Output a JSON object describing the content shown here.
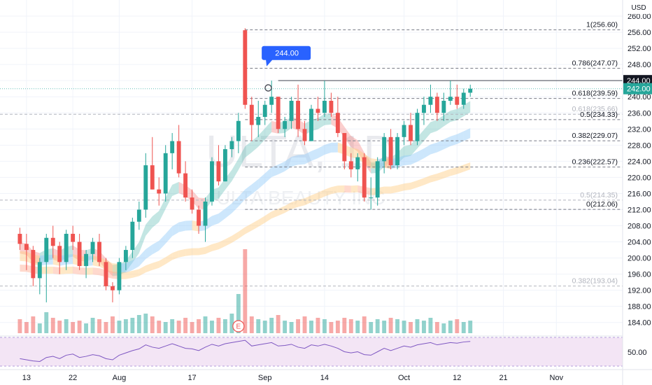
{
  "currency": "USD",
  "watermark": {
    "ticker": "ULTA, 1D",
    "name": "ULTA BEAUTY INC"
  },
  "last_price_label": "242.00",
  "highlight_label": "244.00",
  "earnings_marker": "E",
  "rsi_label": "50.00",
  "colors": {
    "up": "#26a69a",
    "down": "#ef5350",
    "fib_major": "#787b86",
    "fib_minor": "#b2b5be",
    "callout": "#2962ff",
    "rsi_line": "#7e57c2",
    "rsi_band": "#f3e5f5"
  },
  "chart_data": {
    "type": "candlestick",
    "title": "",
    "y_axis": {
      "ticks": [
        "260.00",
        "256.00",
        "252.00",
        "248.00",
        "244.00",
        "240.00",
        "236.00",
        "232.00",
        "228.00",
        "224.00",
        "220.00",
        "216.00",
        "212.00",
        "208.00",
        "204.00",
        "200.00",
        "196.00",
        "192.00",
        "188.00",
        "184.00"
      ],
      "range": [
        181,
        264
      ]
    },
    "x_axis": {
      "tick_labels": [
        {
          "label": "13",
          "index": 1
        },
        {
          "label": "22",
          "index": 8
        },
        {
          "label": "Aug",
          "index": 15
        },
        {
          "label": "17",
          "index": 26
        },
        {
          "label": "Sep",
          "index": 37
        },
        {
          "label": "14",
          "index": 46
        },
        {
          "label": "Oct",
          "index": 58
        },
        {
          "label": "12",
          "index": 66
        },
        {
          "label": "21",
          "index": 73
        },
        {
          "label": "Nov",
          "index": 81
        }
      ],
      "index_range": [
        -3,
        91
      ]
    },
    "fibonacci": [
      {
        "label": "1(256.60)",
        "value": 256.6,
        "major": true
      },
      {
        "label": "0.786(247.07)",
        "value": 247.07,
        "major": true
      },
      {
        "label": "0.618(239.59)",
        "value": 239.59,
        "major": true
      },
      {
        "label": "0.618(235.66)",
        "value": 235.66,
        "major": false
      },
      {
        "label": "0.5(234.33)",
        "value": 234.33,
        "major": true
      },
      {
        "label": "0.382(229.07)",
        "value": 229.07,
        "major": true
      },
      {
        "label": "0.236(222.57)",
        "value": 222.57,
        "major": true
      },
      {
        "label": "0.5(214.35)",
        "value": 214.35,
        "major": false
      },
      {
        "label": "0(212.06)",
        "value": 212.06,
        "major": true
      },
      {
        "label": "0.382(193.04)",
        "value": 193.04,
        "major": false
      }
    ],
    "horizontal_line": 244.0,
    "candles": [
      [
        206,
        207.5,
        202,
        203.5
      ],
      [
        203.5,
        206,
        197,
        202
      ],
      [
        202,
        203,
        193,
        195
      ],
      [
        195,
        200,
        191,
        199
      ],
      [
        199,
        206,
        189,
        205
      ],
      [
        205,
        208,
        200,
        203
      ],
      [
        203,
        204,
        196,
        199
      ],
      [
        199,
        207,
        197,
        206
      ],
      [
        206,
        208,
        202,
        204
      ],
      [
        204,
        206,
        197,
        198
      ],
      [
        198,
        202,
        195,
        201
      ],
      [
        201,
        205,
        199,
        204
      ],
      [
        204,
        206,
        198,
        199
      ],
      [
        199,
        200,
        192,
        193
      ],
      [
        193,
        194,
        189,
        192
      ],
      [
        192,
        200,
        191,
        199
      ],
      [
        199,
        203,
        197,
        202
      ],
      [
        202,
        210,
        200,
        209
      ],
      [
        209,
        214,
        207,
        212
      ],
      [
        212,
        226,
        210,
        223
      ],
      [
        223,
        230,
        217,
        217
      ],
      [
        217,
        220,
        213,
        216
      ],
      [
        216,
        228,
        214,
        226
      ],
      [
        226,
        231,
        222,
        229
      ],
      [
        229,
        233,
        220,
        221
      ],
      [
        221,
        224,
        214,
        215
      ],
      [
        215,
        217,
        211,
        212
      ],
      [
        212,
        213,
        206,
        208
      ],
      [
        208,
        215,
        204,
        214
      ],
      [
        214,
        225,
        213,
        224
      ],
      [
        224,
        228,
        218,
        219
      ],
      [
        219,
        228,
        219,
        227
      ],
      [
        227,
        230,
        225,
        229
      ],
      [
        229,
        236,
        226,
        234
      ],
      [
        256.5,
        257,
        237,
        238
      ],
      [
        238,
        240,
        229,
        233
      ],
      [
        233,
        239,
        230,
        235
      ],
      [
        235,
        239,
        233,
        238
      ],
      [
        238,
        244,
        236,
        240
      ],
      [
        240,
        240,
        231,
        232
      ],
      [
        232,
        235,
        230,
        234
      ],
      [
        234,
        240,
        232,
        239
      ],
      [
        239,
        243,
        230,
        232
      ],
      [
        232,
        234,
        228,
        229
      ],
      [
        229,
        238,
        229,
        237
      ],
      [
        237,
        240,
        234,
        236
      ],
      [
        236,
        244,
        235,
        239
      ],
      [
        239,
        241,
        235,
        236
      ],
      [
        236,
        240,
        230,
        231
      ],
      [
        231,
        231,
        222,
        224
      ],
      [
        224,
        226,
        220,
        222
      ],
      [
        222,
        226,
        219,
        225
      ],
      [
        225,
        226,
        214,
        215
      ],
      [
        215,
        220,
        212,
        215
      ],
      [
        215,
        225,
        213,
        224
      ],
      [
        224,
        231,
        221,
        230
      ],
      [
        230,
        232,
        222,
        223
      ],
      [
        223,
        231,
        222,
        230
      ],
      [
        230,
        234,
        228,
        233
      ],
      [
        233,
        236,
        228,
        229
      ],
      [
        229,
        237,
        228,
        236
      ],
      [
        236,
        240,
        233,
        238
      ],
      [
        238,
        243,
        236,
        240
      ],
      [
        240,
        241,
        234,
        236
      ],
      [
        236,
        241,
        234,
        239
      ],
      [
        239,
        244,
        238,
        240
      ],
      [
        240,
        243,
        237,
        238
      ],
      [
        238,
        242,
        237,
        241
      ],
      [
        241,
        243,
        240,
        242
      ]
    ],
    "volume": [
      10,
      8,
      12,
      7,
      15,
      11,
      9,
      10,
      8,
      9,
      7,
      11,
      10,
      8,
      12,
      9,
      10,
      11,
      13,
      14,
      12,
      9,
      8,
      10,
      9,
      11,
      8,
      10,
      12,
      9,
      11,
      10,
      14,
      28,
      60,
      12,
      10,
      9,
      11,
      13,
      9,
      8,
      10,
      12,
      9,
      11,
      10,
      8,
      9,
      11,
      10,
      9,
      12,
      8,
      10,
      9,
      11,
      10,
      9,
      8,
      10,
      9,
      11,
      8,
      7,
      9,
      10,
      8,
      9
    ],
    "rsi": [
      38,
      36,
      34,
      33,
      40,
      42,
      38,
      44,
      46,
      40,
      42,
      45,
      43,
      38,
      36,
      44,
      48,
      52,
      55,
      62,
      58,
      56,
      60,
      64,
      60,
      56,
      55,
      52,
      58,
      63,
      60,
      64,
      66,
      68,
      70,
      60,
      62,
      64,
      66,
      60,
      61,
      63,
      58,
      56,
      62,
      60,
      63,
      60,
      56,
      50,
      48,
      50,
      45,
      44,
      50,
      56,
      52,
      56,
      60,
      58,
      62,
      64,
      66,
      62,
      64,
      66,
      65,
      67,
      68
    ]
  }
}
